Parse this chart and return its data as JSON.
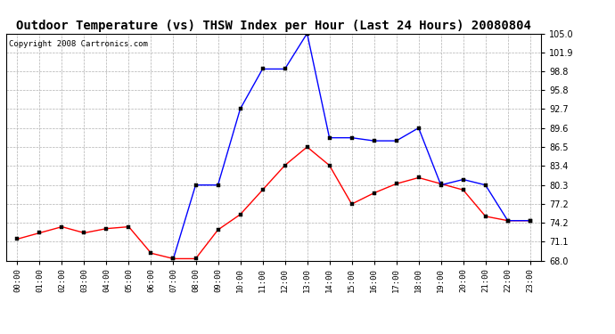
{
  "title": "Outdoor Temperature (vs) THSW Index per Hour (Last 24 Hours) 20080804",
  "copyright": "Copyright 2008 Cartronics.com",
  "hours": [
    "00:00",
    "01:00",
    "02:00",
    "03:00",
    "04:00",
    "05:00",
    "06:00",
    "07:00",
    "08:00",
    "09:00",
    "10:00",
    "11:00",
    "12:00",
    "13:00",
    "14:00",
    "15:00",
    "16:00",
    "17:00",
    "18:00",
    "19:00",
    "20:00",
    "21:00",
    "22:00",
    "23:00"
  ],
  "temp": [
    71.5,
    72.5,
    73.5,
    72.5,
    73.2,
    73.5,
    69.2,
    68.3,
    68.3,
    73.0,
    75.5,
    79.5,
    83.5,
    86.5,
    83.5,
    77.2,
    79.0,
    80.5,
    81.5,
    80.5,
    79.5,
    75.2,
    74.5,
    74.5
  ],
  "thsw": [
    null,
    null,
    null,
    null,
    null,
    null,
    null,
    68.3,
    80.3,
    80.3,
    92.7,
    99.2,
    99.2,
    105.0,
    88.0,
    88.0,
    87.5,
    87.5,
    89.6,
    80.3,
    81.2,
    80.3,
    74.5,
    74.5
  ],
  "ylim": [
    68.0,
    105.0
  ],
  "yticks": [
    68.0,
    71.1,
    74.2,
    77.2,
    80.3,
    83.4,
    86.5,
    89.6,
    92.7,
    95.8,
    98.8,
    101.9,
    105.0
  ],
  "temp_color": "#ff0000",
  "thsw_color": "#0000ff",
  "bg_color": "#ffffff",
  "grid_color": "#b0b0b0",
  "title_fontsize": 10,
  "copyright_fontsize": 6.5
}
